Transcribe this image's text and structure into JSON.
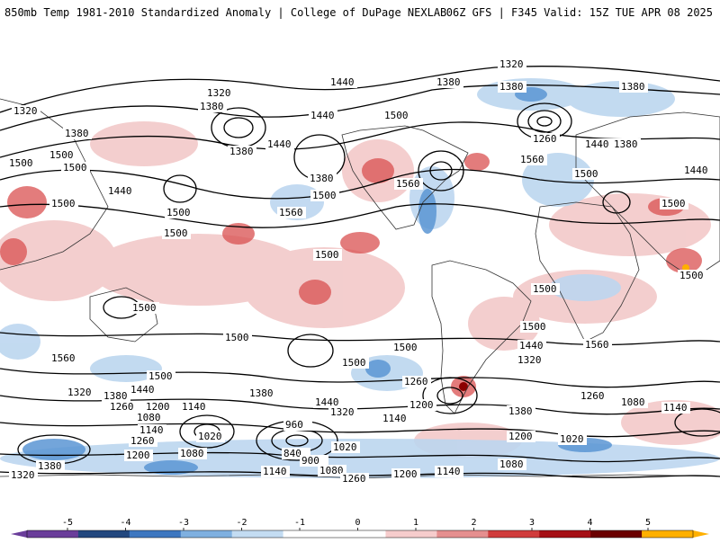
{
  "header": {
    "left": "850mb Temp 1981-2010 Standardized Anomaly | College of DuPage NEXLAB",
    "right": "06Z GFS | F345 Valid: 15Z TUE APR 08 2025"
  },
  "colorbar": {
    "ticks": [
      "-5",
      "-4",
      "-3",
      "-2",
      "-1",
      "0",
      "1",
      "2",
      "3",
      "4",
      "5"
    ],
    "colors": [
      "#6a3d9a",
      "#22477e",
      "#3d77c0",
      "#7fb0e0",
      "#c3dcf2",
      "#ffffff",
      "#ffffff",
      "#f6cccc",
      "#e58f8f",
      "#d03c3c",
      "#a50f15",
      "#6b0000",
      "#ffb000"
    ]
  },
  "contour_labels": [
    {
      "text": "1320"
    },
    {
      "text": "1380"
    },
    {
      "text": "1440"
    },
    {
      "text": "1500"
    },
    {
      "text": "1560"
    },
    {
      "text": "1260"
    },
    {
      "text": "1200"
    },
    {
      "text": "1140"
    },
    {
      "text": "1080"
    },
    {
      "text": "1020"
    },
    {
      "text": "960"
    },
    {
      "text": "900"
    },
    {
      "text": "840"
    }
  ]
}
